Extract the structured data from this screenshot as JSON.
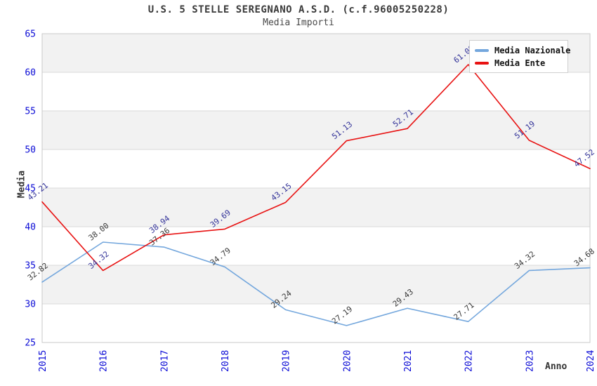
{
  "header": {
    "title": "U.S. 5 STELLE SEREGNANO A.S.D. (c.f.96005250228)",
    "subtitle": "Media Importi"
  },
  "legend": {
    "items": [
      {
        "label": "Media Nazionale",
        "color": "#74a7dd"
      },
      {
        "label": "Media Ente",
        "color": "#e81212"
      }
    ]
  },
  "colors": {
    "axis_tick_label": "#0b0bd6",
    "band_fill": "#f2f2f2",
    "gridline": "#d9d9d9",
    "plot_border": "#c9c9c9",
    "title_text": "#3a3a3a"
  },
  "chart_data": {
    "type": "line",
    "title": "U.S. 5 STELLE SEREGNANO A.S.D. (c.f.96005250228)",
    "subtitle": "Media Importi",
    "xlabel": "Anno",
    "ylabel": "Media",
    "categories": [
      "2015",
      "2016",
      "2017",
      "2018",
      "2019",
      "2020",
      "2021",
      "2022",
      "2023",
      "2024"
    ],
    "ylim": [
      25,
      65
    ],
    "ytick_step": 5,
    "grid": "horizontal-bands",
    "legend_position": "top-right-inside",
    "label_decimals": 2,
    "series": [
      {
        "name": "Media Nazionale",
        "color": "#74a7dd",
        "label_color": "#3a3a3a",
        "values": [
          32.82,
          38.0,
          37.36,
          34.79,
          29.24,
          27.19,
          29.43,
          27.71,
          34.32,
          34.68
        ]
      },
      {
        "name": "Media Ente",
        "color": "#e81212",
        "label_color": "#333399",
        "values": [
          43.21,
          34.32,
          38.94,
          39.69,
          43.15,
          51.13,
          52.71,
          61.0,
          51.19,
          47.52
        ]
      }
    ]
  }
}
